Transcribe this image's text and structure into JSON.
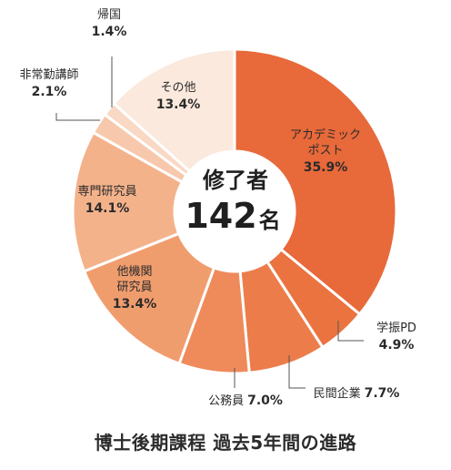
{
  "chart_data": {
    "type": "pie",
    "style": "donut",
    "title": "博士後期課程 過去5年間の進路",
    "center": {
      "title": "修了者",
      "total": "142",
      "unit": "名"
    },
    "slices": [
      {
        "name": "アカデミックポスト",
        "name_lines": [
          "アカデミック",
          "ポスト"
        ],
        "value": 35.9,
        "value_label": "35.9%",
        "color": "#e8693a"
      },
      {
        "name": "学振PD",
        "name_lines": [
          "学振PD"
        ],
        "value": 4.9,
        "value_label": "4.9%",
        "color": "#ea7340"
      },
      {
        "name": "民間企業",
        "name_lines": [
          "民間企業"
        ],
        "value": 7.7,
        "value_label": "7.7%",
        "color": "#ec7d4b"
      },
      {
        "name": "公務員",
        "name_lines": [
          "公務員"
        ],
        "value": 7.0,
        "value_label": "7.0%",
        "color": "#ef8a5b"
      },
      {
        "name": "他機関研究員",
        "name_lines": [
          "他機関",
          "研究員"
        ],
        "value": 13.4,
        "value_label": "13.4%",
        "color": "#f09d6e"
      },
      {
        "name": "専門研究員",
        "name_lines": [
          "専門研究員"
        ],
        "value": 14.1,
        "value_label": "14.1%",
        "color": "#f4b28b"
      },
      {
        "name": "非常勤講師",
        "name_lines": [
          "非常勤講師"
        ],
        "value": 2.1,
        "value_label": "2.1%",
        "color": "#f7c8ab"
      },
      {
        "name": "帰国",
        "name_lines": [
          "帰国"
        ],
        "value": 1.4,
        "value_label": "1.4%",
        "color": "#f9d8c4"
      },
      {
        "name": "その他",
        "name_lines": [
          "その他"
        ],
        "value": 13.4,
        "value_label": "13.4%",
        "color": "#fbe9dd"
      }
    ]
  }
}
